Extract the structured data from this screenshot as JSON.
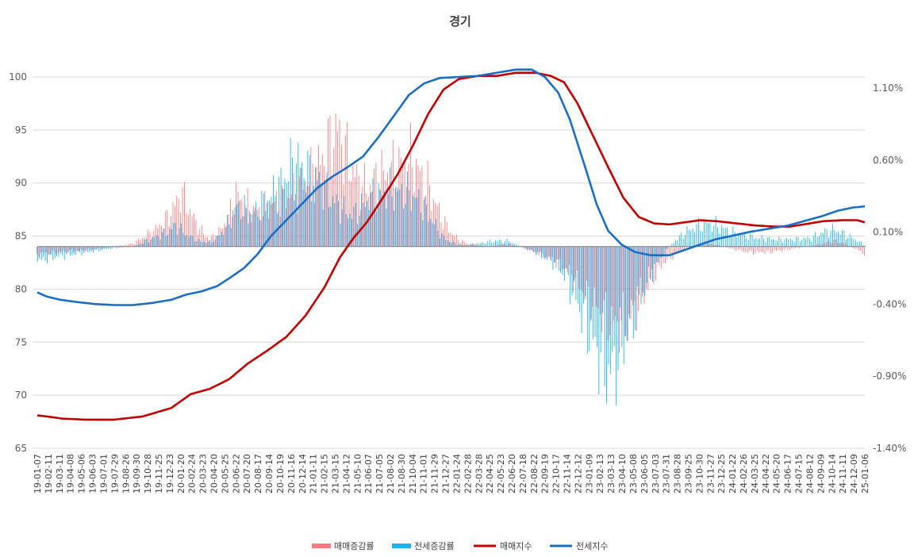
{
  "chart_data": {
    "type": "bar+line",
    "title": "경기",
    "y_left": {
      "ticks": [
        100,
        95,
        90,
        85,
        80,
        75,
        70,
        65
      ],
      "range": [
        65,
        100
      ]
    },
    "y_right": {
      "tick_labels": [
        "1.10%",
        "0.60%",
        "0.10%",
        "-0.40%",
        "-0.90%",
        "-1.40%"
      ],
      "ticks": [
        1.1,
        0.6,
        0.1,
        -0.4,
        -0.9,
        -1.4
      ],
      "range": [
        -1.4,
        1.1
      ]
    },
    "x_labels": [
      "19-01-07",
      "19-02-11",
      "19-03-11",
      "19-04-08",
      "19-05-06",
      "19-06-03",
      "19-07-01",
      "19-07-29",
      "19-08-26",
      "19-09-30",
      "19-10-28",
      "19-11-25",
      "19-12-23",
      "20-01-20",
      "20-02-24",
      "20-03-23",
      "20-04-20",
      "20-05-25",
      "20-06-22",
      "20-07-20",
      "20-08-17",
      "20-09-14",
      "20-10-19",
      "20-11-16",
      "20-12-14",
      "21-01-11",
      "21-02-15",
      "21-03-15",
      "21-04-12",
      "21-05-10",
      "21-06-07",
      "21-07-05",
      "21-08-02",
      "21-08-30",
      "21-10-04",
      "21-11-01",
      "21-11-29",
      "21-12-27",
      "22-01-24",
      "22-02-28",
      "22-03-28",
      "22-04-25",
      "22-05-23",
      "22-06-20",
      "22-07-18",
      "22-08-22",
      "22-09-19",
      "22-10-17",
      "22-11-14",
      "22-12-12",
      "23-01-09",
      "23-02-13",
      "23-03-13",
      "23-04-10",
      "23-05-08",
      "23-06-05",
      "23-07-03",
      "23-07-31",
      "23-08-28",
      "23-09-25",
      "23-10-30",
      "23-11-27",
      "23-12-25",
      "24-01-22",
      "24-02-26",
      "24-03-25",
      "24-04-22",
      "24-05-20",
      "24-06-17",
      "24-07-15",
      "24-08-12",
      "24-09-09",
      "24-10-14",
      "24-11-11",
      "24-12-09",
      "25-01-06"
    ],
    "legend": [
      "매매증감률",
      "전세증감률",
      "매매지수",
      "전세지수"
    ],
    "legend_position": "bottom",
    "colors": {
      "sale_rate": "#ff7c80",
      "jeonse_rate": "#1fb4f0",
      "sale_index": "#c00000",
      "jeonse_index": "#1a6fc4"
    },
    "sale_index_anchors": [
      [
        0,
        68.1
      ],
      [
        5,
        68.0
      ],
      [
        13,
        67.8
      ],
      [
        25,
        67.7
      ],
      [
        40,
        67.7
      ],
      [
        55,
        68.0
      ],
      [
        70,
        68.8
      ],
      [
        80,
        70.1
      ],
      [
        90,
        70.6
      ],
      [
        100,
        71.5
      ],
      [
        110,
        73.0
      ],
      [
        120,
        74.2
      ],
      [
        130,
        75.5
      ],
      [
        140,
        77.5
      ],
      [
        150,
        80.2
      ],
      [
        158,
        83.0
      ],
      [
        165,
        84.8
      ],
      [
        172,
        86.3
      ],
      [
        180,
        88.5
      ],
      [
        188,
        90.8
      ],
      [
        196,
        93.5
      ],
      [
        204,
        96.5
      ],
      [
        212,
        98.8
      ],
      [
        220,
        99.8
      ],
      [
        230,
        100.1
      ],
      [
        240,
        100.1
      ],
      [
        250,
        100.4
      ],
      [
        260,
        100.4
      ],
      [
        268,
        100.1
      ],
      [
        275,
        99.5
      ],
      [
        282,
        97.5
      ],
      [
        290,
        94.5
      ],
      [
        298,
        91.5
      ],
      [
        306,
        88.6
      ],
      [
        314,
        86.8
      ],
      [
        322,
        86.2
      ],
      [
        330,
        86.1
      ],
      [
        338,
        86.3
      ],
      [
        346,
        86.5
      ],
      [
        355,
        86.4
      ],
      [
        365,
        86.2
      ],
      [
        375,
        86.0
      ],
      [
        385,
        85.9
      ],
      [
        393,
        85.9
      ],
      [
        400,
        86.1
      ],
      [
        410,
        86.4
      ],
      [
        420,
        86.5
      ],
      [
        428,
        86.5
      ],
      [
        432,
        86.3
      ]
    ],
    "jeonse_index_anchors": [
      [
        0,
        79.7
      ],
      [
        5,
        79.3
      ],
      [
        12,
        79.0
      ],
      [
        20,
        78.8
      ],
      [
        30,
        78.6
      ],
      [
        40,
        78.5
      ],
      [
        50,
        78.5
      ],
      [
        60,
        78.7
      ],
      [
        70,
        79.0
      ],
      [
        78,
        79.5
      ],
      [
        86,
        79.8
      ],
      [
        94,
        80.3
      ],
      [
        100,
        81.0
      ],
      [
        108,
        82.0
      ],
      [
        115,
        83.3
      ],
      [
        122,
        85.0
      ],
      [
        130,
        86.5
      ],
      [
        138,
        88.0
      ],
      [
        146,
        89.5
      ],
      [
        154,
        90.6
      ],
      [
        162,
        91.5
      ],
      [
        170,
        92.5
      ],
      [
        178,
        94.3
      ],
      [
        186,
        96.3
      ],
      [
        194,
        98.3
      ],
      [
        202,
        99.4
      ],
      [
        210,
        99.9
      ],
      [
        220,
        100.0
      ],
      [
        230,
        100.1
      ],
      [
        240,
        100.4
      ],
      [
        250,
        100.7
      ],
      [
        258,
        100.7
      ],
      [
        265,
        100.0
      ],
      [
        272,
        98.5
      ],
      [
        278,
        96.0
      ],
      [
        286,
        91.5
      ],
      [
        292,
        88.0
      ],
      [
        298,
        85.5
      ],
      [
        305,
        84.2
      ],
      [
        312,
        83.5
      ],
      [
        320,
        83.2
      ],
      [
        330,
        83.2
      ],
      [
        338,
        83.7
      ],
      [
        346,
        84.2
      ],
      [
        354,
        84.7
      ],
      [
        362,
        85.0
      ],
      [
        372,
        85.4
      ],
      [
        382,
        85.7
      ],
      [
        392,
        86.0
      ],
      [
        400,
        86.4
      ],
      [
        410,
        86.9
      ],
      [
        418,
        87.4
      ],
      [
        426,
        87.7
      ],
      [
        432,
        87.8
      ]
    ],
    "sale_rate_anchors": [
      [
        0,
        -0.05
      ],
      [
        10,
        -0.04
      ],
      [
        20,
        -0.03
      ],
      [
        30,
        -0.02
      ],
      [
        40,
        0.0
      ],
      [
        50,
        0.02
      ],
      [
        55,
        0.06
      ],
      [
        62,
        0.12
      ],
      [
        68,
        0.2
      ],
      [
        72,
        0.28
      ],
      [
        75,
        0.38
      ],
      [
        80,
        0.24
      ],
      [
        85,
        0.12
      ],
      [
        90,
        0.05
      ],
      [
        95,
        0.1
      ],
      [
        100,
        0.2
      ],
      [
        104,
        0.36
      ],
      [
        108,
        0.3
      ],
      [
        112,
        0.26
      ],
      [
        116,
        0.24
      ],
      [
        120,
        0.28
      ],
      [
        124,
        0.3
      ],
      [
        128,
        0.32
      ],
      [
        132,
        0.36
      ],
      [
        136,
        0.4
      ],
      [
        140,
        0.46
      ],
      [
        144,
        0.52
      ],
      [
        148,
        0.58
      ],
      [
        152,
        0.68
      ],
      [
        155,
        0.78
      ],
      [
        157,
        0.8
      ],
      [
        160,
        0.7
      ],
      [
        164,
        0.55
      ],
      [
        168,
        0.45
      ],
      [
        172,
        0.4
      ],
      [
        176,
        0.45
      ],
      [
        180,
        0.5
      ],
      [
        184,
        0.52
      ],
      [
        188,
        0.55
      ],
      [
        192,
        0.58
      ],
      [
        196,
        0.6
      ],
      [
        200,
        0.5
      ],
      [
        204,
        0.42
      ],
      [
        208,
        0.3
      ],
      [
        212,
        0.18
      ],
      [
        216,
        0.1
      ],
      [
        220,
        0.05
      ],
      [
        225,
        0.02
      ],
      [
        235,
        0.0
      ],
      [
        245,
        0.02
      ],
      [
        252,
        0.0
      ],
      [
        258,
        -0.03
      ],
      [
        264,
        -0.06
      ],
      [
        270,
        -0.1
      ],
      [
        276,
        -0.15
      ],
      [
        282,
        -0.25
      ],
      [
        288,
        -0.35
      ],
      [
        294,
        -0.45
      ],
      [
        300,
        -0.52
      ],
      [
        306,
        -0.55
      ],
      [
        310,
        -0.5
      ],
      [
        316,
        -0.35
      ],
      [
        322,
        -0.2
      ],
      [
        328,
        -0.1
      ],
      [
        334,
        -0.05
      ],
      [
        340,
        0.0
      ],
      [
        346,
        0.02
      ],
      [
        352,
        0.02
      ],
      [
        358,
        0.0
      ],
      [
        364,
        -0.02
      ],
      [
        372,
        -0.04
      ],
      [
        382,
        -0.04
      ],
      [
        392,
        -0.02
      ],
      [
        402,
        0.0
      ],
      [
        410,
        0.02
      ],
      [
        416,
        0.04
      ],
      [
        422,
        0.02
      ],
      [
        428,
        -0.02
      ],
      [
        432,
        -0.05
      ]
    ],
    "jeonse_rate_anchors": [
      [
        0,
        -0.1
      ],
      [
        10,
        -0.07
      ],
      [
        20,
        -0.05
      ],
      [
        30,
        -0.03
      ],
      [
        40,
        -0.01
      ],
      [
        50,
        0.0
      ],
      [
        55,
        0.03
      ],
      [
        62,
        0.07
      ],
      [
        68,
        0.1
      ],
      [
        72,
        0.15
      ],
      [
        78,
        0.08
      ],
      [
        84,
        0.04
      ],
      [
        90,
        0.03
      ],
      [
        95,
        0.08
      ],
      [
        100,
        0.17
      ],
      [
        104,
        0.28
      ],
      [
        108,
        0.25
      ],
      [
        112,
        0.22
      ],
      [
        116,
        0.28
      ],
      [
        120,
        0.33
      ],
      [
        124,
        0.38
      ],
      [
        128,
        0.45
      ],
      [
        132,
        0.55
      ],
      [
        136,
        0.58
      ],
      [
        140,
        0.52
      ],
      [
        144,
        0.48
      ],
      [
        148,
        0.44
      ],
      [
        152,
        0.35
      ],
      [
        156,
        0.3
      ],
      [
        160,
        0.25
      ],
      [
        164,
        0.22
      ],
      [
        168,
        0.26
      ],
      [
        172,
        0.32
      ],
      [
        176,
        0.35
      ],
      [
        180,
        0.36
      ],
      [
        184,
        0.38
      ],
      [
        188,
        0.38
      ],
      [
        192,
        0.37
      ],
      [
        196,
        0.35
      ],
      [
        200,
        0.3
      ],
      [
        204,
        0.22
      ],
      [
        208,
        0.14
      ],
      [
        212,
        0.06
      ],
      [
        216,
        0.03
      ],
      [
        222,
        0.01
      ],
      [
        230,
        0.02
      ],
      [
        238,
        0.04
      ],
      [
        246,
        0.04
      ],
      [
        252,
        0.0
      ],
      [
        258,
        -0.03
      ],
      [
        264,
        -0.07
      ],
      [
        270,
        -0.12
      ],
      [
        276,
        -0.22
      ],
      [
        282,
        -0.4
      ],
      [
        288,
        -0.6
      ],
      [
        294,
        -0.78
      ],
      [
        298,
        -0.9
      ],
      [
        302,
        -0.8
      ],
      [
        308,
        -0.6
      ],
      [
        314,
        -0.38
      ],
      [
        320,
        -0.2
      ],
      [
        326,
        -0.06
      ],
      [
        332,
        0.03
      ],
      [
        338,
        0.1
      ],
      [
        344,
        0.14
      ],
      [
        350,
        0.16
      ],
      [
        356,
        0.14
      ],
      [
        362,
        0.1
      ],
      [
        368,
        0.08
      ],
      [
        376,
        0.06
      ],
      [
        386,
        0.05
      ],
      [
        396,
        0.05
      ],
      [
        404,
        0.06
      ],
      [
        410,
        0.1
      ],
      [
        416,
        0.12
      ],
      [
        422,
        0.08
      ],
      [
        428,
        0.04
      ],
      [
        432,
        0.01
      ]
    ]
  }
}
